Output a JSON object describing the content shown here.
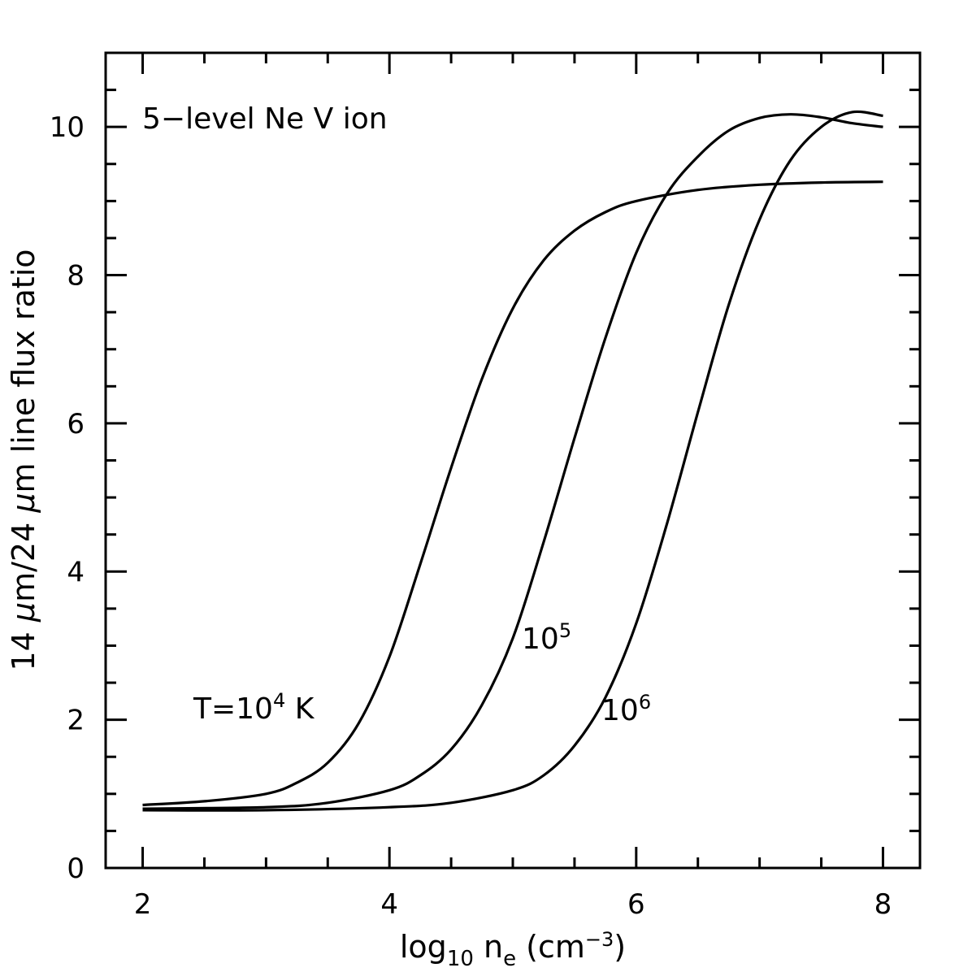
{
  "chart_data": {
    "type": "line",
    "xlabel": {
      "main": "log",
      "sub": "10",
      "var": " n",
      "var_sub": "e",
      "unit_pre": " (cm",
      "unit_sup": "−3",
      "unit_post": ")"
    },
    "ylabel": {
      "pre": "14 ",
      "mu1": "μ",
      "mid": "m/24 ",
      "mu2": "μ",
      "post": "m  line flux ratio"
    },
    "xlim": [
      1.7,
      8.3
    ],
    "ylim": [
      0,
      11
    ],
    "xticks_major": [
      2,
      4,
      6,
      8
    ],
    "yticks_major": [
      0,
      2,
      4,
      6,
      8,
      10
    ],
    "xtick_labels": [
      "2",
      "4",
      "6",
      "8"
    ],
    "ytick_labels": [
      "0",
      "2",
      "4",
      "6",
      "8",
      "10"
    ],
    "annotations": {
      "title": "5−level Ne V ion",
      "t1": {
        "pre": "T=10",
        "sup": "4",
        "post": " K"
      },
      "t2": {
        "pre": "10",
        "sup": "5"
      },
      "t3": {
        "pre": "10",
        "sup": "6"
      }
    },
    "series": [
      {
        "x": [
          2.0,
          2.5,
          3.0,
          3.25,
          3.5,
          3.75,
          4.0,
          4.25,
          4.5,
          4.75,
          5.0,
          5.25,
          5.5,
          5.75,
          6.0,
          6.5,
          7.0,
          7.5,
          8.0
        ],
        "y": [
          0.85,
          0.9,
          1.0,
          1.15,
          1.42,
          1.95,
          2.85,
          4.1,
          5.4,
          6.6,
          7.55,
          8.2,
          8.6,
          8.85,
          9.0,
          9.15,
          9.22,
          9.25,
          9.26
        ]
      },
      {
        "x": [
          2.0,
          3.0,
          3.5,
          4.0,
          4.25,
          4.5,
          4.75,
          5.0,
          5.25,
          5.5,
          5.75,
          6.0,
          6.25,
          6.5,
          6.75,
          7.0,
          7.25,
          7.5,
          7.75,
          8.0
        ],
        "y": [
          0.8,
          0.82,
          0.88,
          1.05,
          1.25,
          1.6,
          2.2,
          3.1,
          4.4,
          5.8,
          7.15,
          8.3,
          9.1,
          9.6,
          9.95,
          10.12,
          10.17,
          10.13,
          10.05,
          10.0
        ]
      },
      {
        "x": [
          2.0,
          3.0,
          4.0,
          4.5,
          5.0,
          5.25,
          5.5,
          5.75,
          6.0,
          6.25,
          6.5,
          6.75,
          7.0,
          7.25,
          7.5,
          7.75,
          8.0
        ],
        "y": [
          0.78,
          0.78,
          0.82,
          0.88,
          1.05,
          1.25,
          1.65,
          2.3,
          3.3,
          4.65,
          6.15,
          7.6,
          8.75,
          9.55,
          10.0,
          10.2,
          10.15
        ]
      }
    ],
    "grid": false,
    "legend": "none"
  }
}
